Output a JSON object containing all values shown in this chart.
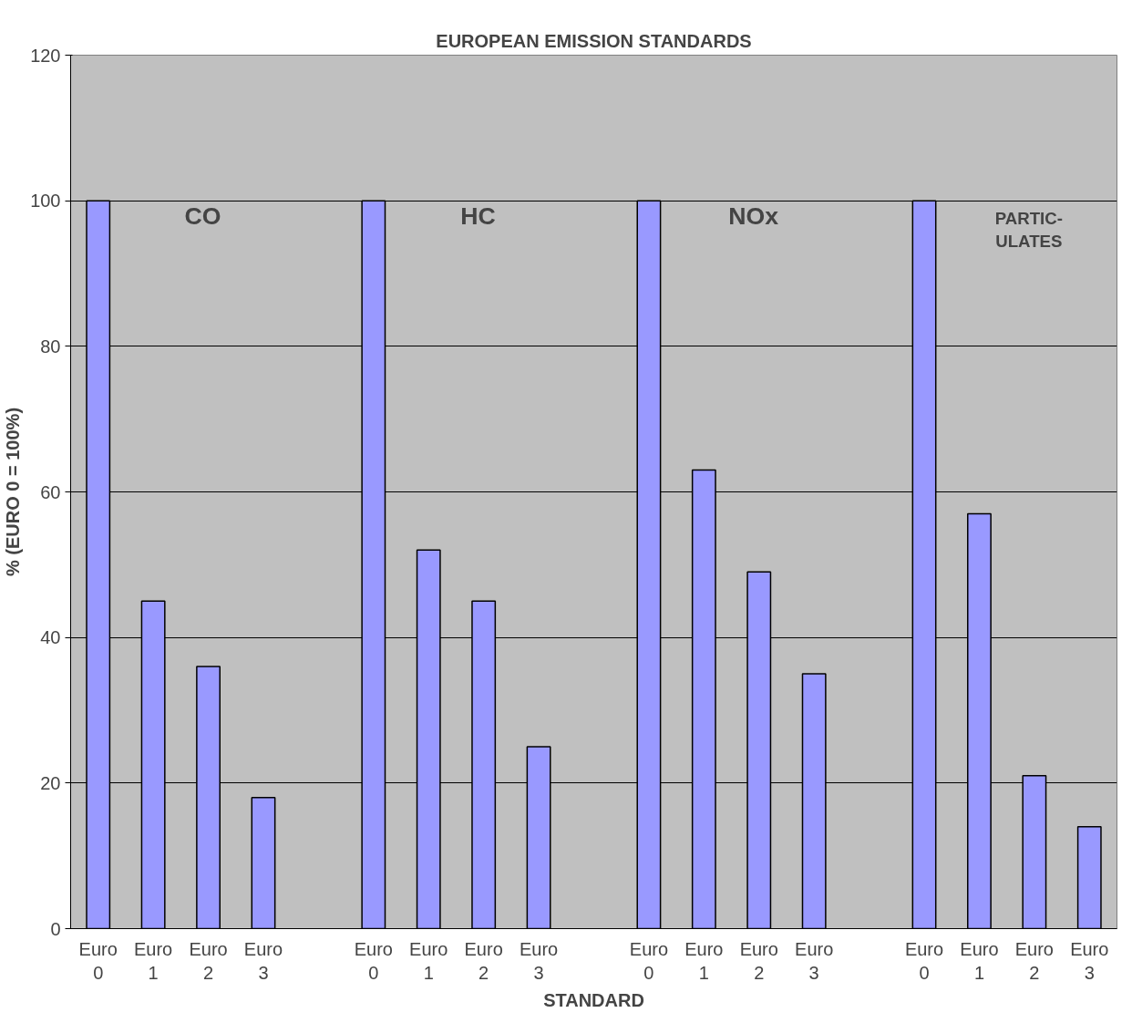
{
  "chart_data": {
    "type": "bar",
    "title": "EUROPEAN EMISSION STANDARDS",
    "xlabel": "STANDARD",
    "ylabel": "% (EURO 0 = 100%)",
    "categories": [
      "Euro 0",
      "Euro 1",
      "Euro 2",
      "Euro 3",
      null,
      "Euro 0",
      "Euro 1",
      "Euro 2",
      "Euro 3",
      null,
      "Euro 0",
      "Euro 1",
      "Euro 2",
      "Euro 3",
      null,
      "Euro 0",
      "Euro 1",
      "Euro 2",
      "Euro 3"
    ],
    "values": [
      100,
      45,
      36,
      18,
      null,
      100,
      52,
      45,
      25,
      null,
      100,
      63,
      49,
      35,
      null,
      100,
      57,
      21,
      14
    ],
    "color": "#9999ff",
    "ylim": [
      0,
      120
    ],
    "yticks": [
      0,
      20,
      40,
      60,
      80,
      100,
      120
    ],
    "grid": "y",
    "annotations": [
      "CO",
      "HC",
      "NOx",
      "PARTIC-\nULATES"
    ]
  }
}
